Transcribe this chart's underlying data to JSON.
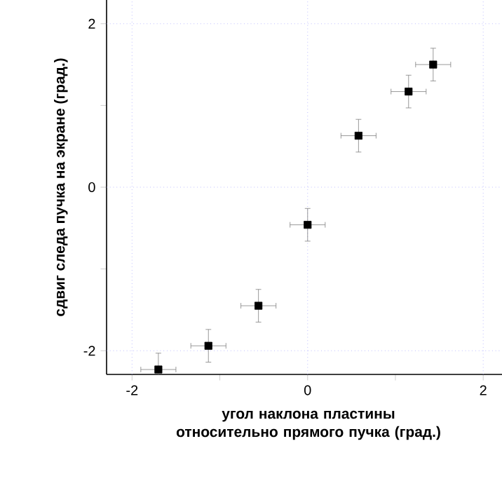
{
  "chart_data": {
    "type": "scatter",
    "xlabel": "угол наклона пластины относительно прямого пучка (град.)",
    "ylabel": "сдвиг следа пучка на экране (град.)",
    "x": [
      -1.7,
      -1.13,
      -0.56,
      0,
      0.58,
      1.15,
      1.43
    ],
    "values": [
      -2.23,
      -1.94,
      -1.45,
      -0.46,
      0.63,
      1.17,
      1.5
    ],
    "errors": [
      0.2,
      0.2,
      0.2,
      0.2,
      0.2,
      0.2,
      0.2
    ],
    "xerrors": [
      0.2,
      0.2,
      0.2,
      0.2,
      0.2,
      0.2,
      0.2
    ],
    "color": "#000000",
    "marker": "square",
    "xlim": [
      -2.29,
      2.31
    ],
    "ylim": [
      -2.29,
      2.29
    ],
    "xticks": [
      -2,
      {
        "value": -1,
        "label": null
      },
      0,
      {
        "value": 1,
        "label": null
      },
      2
    ],
    "yticks": [
      -2,
      {
        "value": -1,
        "label": null
      },
      0,
      {
        "value": 1,
        "label": null
      },
      2
    ],
    "grid": true
  }
}
